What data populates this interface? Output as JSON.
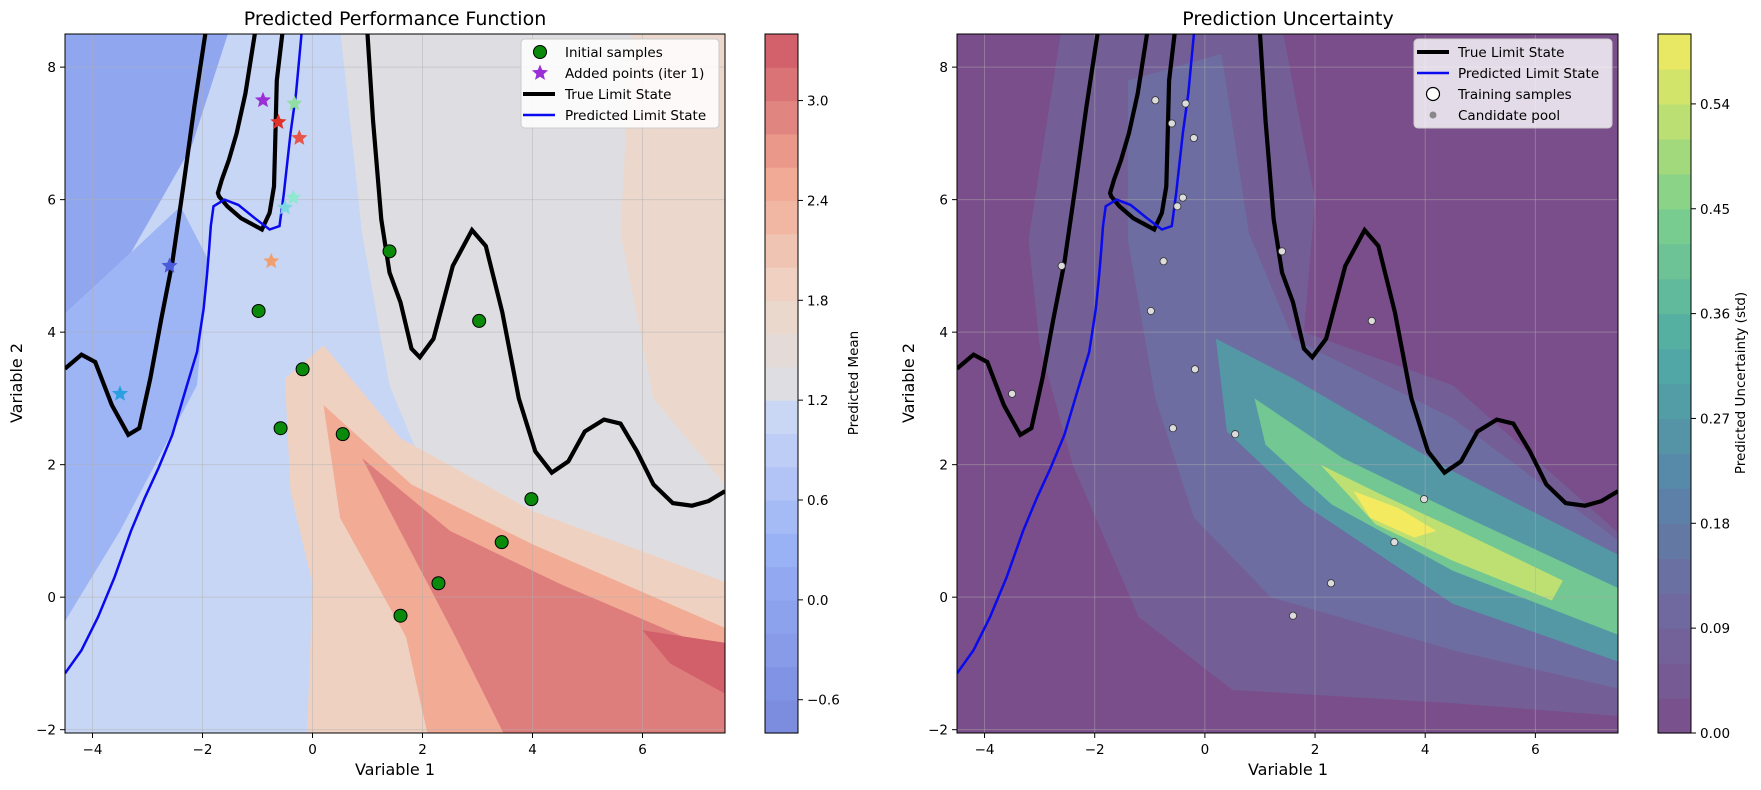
{
  "chart_data": [
    {
      "type": "contour",
      "title": "Predicted Performance Function",
      "xlabel": "Variable 1",
      "ylabel": "Variable 2",
      "xlim": [
        -4.5,
        7.5
      ],
      "ylim": [
        -2.05,
        8.5
      ],
      "xticks": [
        -4,
        -2,
        0,
        2,
        4,
        6
      ],
      "yticks": [
        -2,
        0,
        2,
        4,
        6,
        8
      ],
      "grid": true,
      "colormap": "coolwarm",
      "colorbar": {
        "label": "Predicted Mean",
        "range": [
          -0.8,
          3.4
        ],
        "ticks": [
          "-0.6",
          "0.0",
          "0.6",
          "1.2",
          "1.8",
          "2.4",
          "3.0"
        ],
        "levels": 21
      },
      "legend": {
        "placement": "upper-right",
        "entries": [
          "Initial samples",
          "Added points (iter 1)",
          "True Limit State",
          "Predicted Limit State"
        ]
      },
      "initial_samples": [
        [
          1.4,
          5.22
        ],
        [
          -0.98,
          4.32
        ],
        [
          3.03,
          4.17
        ],
        [
          -0.18,
          3.44
        ],
        [
          -0.58,
          2.55
        ],
        [
          0.55,
          2.46
        ],
        [
          3.98,
          1.48
        ],
        [
          3.44,
          0.83
        ],
        [
          2.29,
          0.21
        ],
        [
          1.6,
          -0.28
        ]
      ],
      "added_points": [
        {
          "x": -0.9,
          "y": 7.5,
          "color": "#9a2fd6"
        },
        {
          "x": -0.33,
          "y": 7.45,
          "color": "#8fe0a0"
        },
        {
          "x": -0.62,
          "y": 7.17,
          "color": "#e0302a"
        },
        {
          "x": -0.24,
          "y": 6.93,
          "color": "#e8544a"
        },
        {
          "x": -0.35,
          "y": 6.03,
          "color": "#8fe8d0"
        },
        {
          "x": -0.5,
          "y": 5.88,
          "color": "#7ed8e0"
        },
        {
          "x": -0.75,
          "y": 5.07,
          "color": "#f0a070"
        },
        {
          "x": -2.6,
          "y": 5.0,
          "color": "#4a5ad8"
        },
        {
          "x": -3.5,
          "y": 3.07,
          "color": "#2b9fe0"
        }
      ],
      "added_legend_color": "#9a2fd6"
    },
    {
      "type": "contour",
      "title": "Prediction Uncertainty",
      "xlabel": "Variable 1",
      "ylabel": "Variable 2",
      "xlim": [
        -4.5,
        7.5
      ],
      "ylim": [
        -2.05,
        8.5
      ],
      "xticks": [
        -4,
        -2,
        0,
        2,
        4,
        6
      ],
      "yticks": [
        -2,
        0,
        2,
        4,
        6,
        8
      ],
      "grid": true,
      "colormap": "viridis",
      "colorbar": {
        "label": "Predicted Uncertainty (std)",
        "range": [
          0,
          0.6
        ],
        "ticks": [
          "0.00",
          "0.09",
          "0.18",
          "0.27",
          "0.36",
          "0.45",
          "0.54"
        ],
        "levels": 20
      },
      "legend": {
        "placement": "upper-right",
        "entries": [
          "True Limit State",
          "Predicted Limit State",
          "Training samples",
          "Candidate pool"
        ]
      },
      "training_samples": [
        [
          -0.9,
          7.5
        ],
        [
          -0.6,
          7.15
        ],
        [
          -0.35,
          7.45
        ],
        [
          -0.2,
          6.93
        ],
        [
          -0.4,
          6.03
        ],
        [
          -0.5,
          5.9
        ],
        [
          -0.75,
          5.07
        ],
        [
          -2.6,
          5.0
        ],
        [
          1.4,
          5.22
        ],
        [
          -0.98,
          4.32
        ],
        [
          3.03,
          4.17
        ],
        [
          -0.18,
          3.44
        ],
        [
          -3.5,
          3.07
        ],
        [
          -0.58,
          2.55
        ],
        [
          0.55,
          2.46
        ],
        [
          3.98,
          1.48
        ],
        [
          3.44,
          0.83
        ],
        [
          2.29,
          0.21
        ],
        [
          1.6,
          -0.28
        ]
      ]
    }
  ],
  "curves": {
    "true_limit_state": [
      [
        -4.5,
        3.45
      ],
      [
        -4.2,
        3.66
      ],
      [
        -3.95,
        3.55
      ],
      [
        -3.65,
        2.9
      ],
      [
        -3.35,
        2.45
      ],
      [
        -3.15,
        2.55
      ],
      [
        -2.95,
        3.3
      ],
      [
        -2.75,
        4.2
      ],
      [
        -2.55,
        5.05
      ],
      [
        -2.35,
        6.2
      ],
      [
        -2.15,
        7.4
      ],
      [
        -1.95,
        8.5
      ],
      [
        -0.55,
        8.5
      ],
      [
        -0.65,
        7.8
      ],
      [
        -0.68,
        6.8
      ],
      [
        -0.7,
        6.2
      ],
      [
        -0.78,
        5.8
      ],
      [
        -0.92,
        5.55
      ],
      [
        -1.3,
        5.72
      ],
      [
        -1.55,
        5.9
      ],
      [
        -1.7,
        6.05
      ],
      [
        -1.72,
        6.1
      ],
      [
        -1.65,
        6.3
      ],
      [
        -1.52,
        6.6
      ],
      [
        -1.38,
        7.0
      ],
      [
        -1.22,
        7.6
      ],
      [
        -1.05,
        8.5
      ],
      [
        1.0,
        8.5
      ],
      [
        1.1,
        7.2
      ],
      [
        1.25,
        5.7
      ],
      [
        1.4,
        4.9
      ],
      [
        1.6,
        4.45
      ],
      [
        1.8,
        3.75
      ],
      [
        1.95,
        3.62
      ],
      [
        2.2,
        3.9
      ],
      [
        2.55,
        5.0
      ],
      [
        2.9,
        5.54
      ],
      [
        3.15,
        5.3
      ],
      [
        3.45,
        4.3
      ],
      [
        3.75,
        3.0
      ],
      [
        4.05,
        2.2
      ],
      [
        4.35,
        1.88
      ],
      [
        4.65,
        2.05
      ],
      [
        4.95,
        2.5
      ],
      [
        5.3,
        2.68
      ],
      [
        5.6,
        2.62
      ],
      [
        5.9,
        2.2
      ],
      [
        6.2,
        1.7
      ],
      [
        6.55,
        1.42
      ],
      [
        6.9,
        1.38
      ],
      [
        7.2,
        1.45
      ],
      [
        7.5,
        1.6
      ]
    ],
    "predicted_limit_state": [
      [
        -4.5,
        -1.15
      ],
      [
        -4.2,
        -0.8
      ],
      [
        -3.9,
        -0.3
      ],
      [
        -3.6,
        0.3
      ],
      [
        -3.3,
        1.0
      ],
      [
        -3.05,
        1.5
      ],
      [
        -2.8,
        1.95
      ],
      [
        -2.55,
        2.45
      ],
      [
        -2.3,
        3.15
      ],
      [
        -2.1,
        3.7
      ],
      [
        -1.98,
        4.35
      ],
      [
        -1.92,
        4.85
      ],
      [
        -1.88,
        5.25
      ],
      [
        -1.85,
        5.6
      ],
      [
        -1.8,
        5.9
      ],
      [
        -1.6,
        6.0
      ],
      [
        -1.35,
        5.92
      ],
      [
        -1.05,
        5.72
      ],
      [
        -0.78,
        5.55
      ],
      [
        -0.6,
        5.6
      ],
      [
        -0.52,
        6.1
      ],
      [
        -0.4,
        7.0
      ],
      [
        -0.3,
        7.6
      ],
      [
        -0.2,
        8.5
      ]
    ]
  }
}
